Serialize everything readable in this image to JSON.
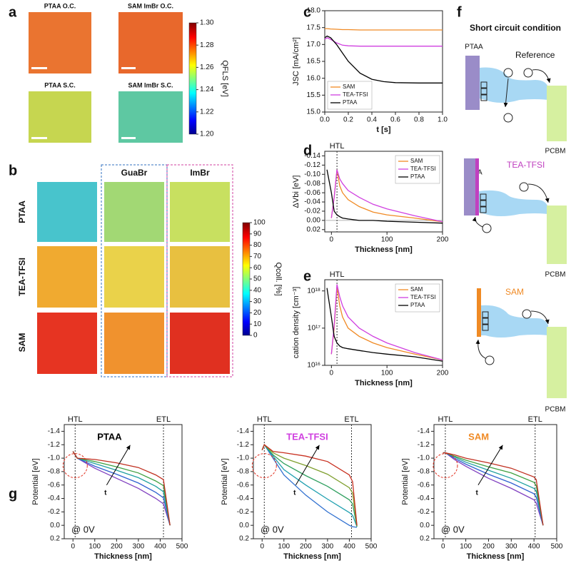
{
  "panel_labels": [
    "a",
    "b",
    "c",
    "d",
    "e",
    "f",
    "g"
  ],
  "panel_a": {
    "titles": [
      "PTAA O.C.",
      "SAM ImBr O.C.",
      "PTAA S.C.",
      "SAM ImBr S.C."
    ],
    "colorbar": {
      "label": "QFLS [eV]",
      "lim": [
        1.2,
        1.3
      ],
      "ticks": [
        {
          "value": 1.2,
          "label": "1.20"
        },
        1.22,
        1.24,
        1.26,
        1.28,
        {
          "value": 1.3,
          "label": "1.30"
        }
      ]
    }
  },
  "panel_b": {
    "columns": [
      "GuaBr",
      "ImBr"
    ],
    "rows": [
      "PTAA",
      "TEA-TFSI",
      "SAM"
    ],
    "colorbar": {
      "label": "Qcoll. [%]",
      "lim": [
        0,
        100
      ],
      "ticks": [
        0,
        10,
        20,
        30,
        40,
        50,
        60,
        70,
        80,
        90,
        100
      ]
    }
  },
  "panel_f": {
    "title": "Short circuit condition",
    "htl": "PTAA",
    "reference": "Reference",
    "etl": "PCBM",
    "tea": "TEA-TFSI",
    "sam": "SAM"
  },
  "chart_data": [
    {
      "type": "line",
      "xlabel": "t [s]",
      "ylabel": "JSC [mA/cm²]",
      "legend": "lower left",
      "xlim": [
        0,
        1
      ],
      "ylim": [
        15,
        18
      ],
      "xticks": [
        {
          "value": 0,
          "label": "0.0"
        },
        0.2,
        0.4,
        0.6,
        0.8,
        {
          "value": 1,
          "label": "1.0"
        }
      ],
      "yticks": [
        {
          "value": 15,
          "label": "15.0"
        },
        15.5,
        {
          "value": 16,
          "label": "16.0"
        },
        16.5,
        {
          "value": 17,
          "label": "17.0"
        },
        17.5,
        {
          "value": 18,
          "label": "18.0"
        }
      ],
      "x": [
        0,
        0.02,
        0.05,
        0.1,
        0.15,
        0.2,
        0.3,
        0.4,
        0.5,
        0.6,
        0.8,
        1.0
      ],
      "series": [
        {
          "name": "SAM",
          "color": "#f08a24",
          "values": [
            17.47,
            17.47,
            17.46,
            17.45,
            17.44,
            17.44,
            17.43,
            17.43,
            17.43,
            17.43,
            17.43,
            17.43
          ]
        },
        {
          "name": "TEA-TFSI",
          "color": "#d040e0",
          "values": [
            17.15,
            17.2,
            17.15,
            17.05,
            16.98,
            16.96,
            16.95,
            16.95,
            16.95,
            16.95,
            16.95,
            16.95
          ]
        },
        {
          "name": "PTAA",
          "color": "#000000",
          "values": [
            17.2,
            17.25,
            17.2,
            17.0,
            16.75,
            16.5,
            16.15,
            15.97,
            15.9,
            15.87,
            15.86,
            15.86
          ]
        }
      ]
    },
    {
      "type": "line",
      "xlabel": "Thickness [nm]",
      "ylabel": "ΔVbi [eV]",
      "legend": "upper right",
      "xlim": [
        -12,
        200
      ],
      "ylim": [
        0.025,
        -0.15
      ],
      "zero_line": true,
      "xticks": [
        0,
        100,
        200
      ],
      "yticks": [
        -0.14,
        -0.12,
        {
          "value": -0.1,
          "label": "-0.10"
        },
        -0.08,
        -0.06,
        -0.04,
        -0.02,
        {
          "value": 0,
          "label": "0.00"
        },
        0.02
      ],
      "annotations": [
        {
          "text": "HTL",
          "x": 10
        }
      ],
      "x": [
        -8,
        0,
        5,
        10,
        15,
        20,
        30,
        50,
        75,
        100,
        150,
        200
      ],
      "series": [
        {
          "name": "SAM",
          "color": "#f08a24",
          "values": [
            null,
            -0.005,
            -0.05,
            -0.11,
            -0.075,
            -0.06,
            -0.045,
            -0.03,
            -0.018,
            -0.012,
            -0.005,
            0.003
          ]
        },
        {
          "name": "TEA-TFSI",
          "color": "#d040e0",
          "values": [
            null,
            -0.005,
            -0.05,
            -0.11,
            -0.09,
            -0.08,
            -0.065,
            -0.05,
            -0.035,
            -0.025,
            -0.01,
            0.003
          ]
        },
        {
          "name": "PTAA",
          "color": "#000000",
          "values": [
            -0.11,
            -0.06,
            -0.02,
            -0.012,
            -0.008,
            -0.005,
            -0.003,
            0,
            0,
            0.002,
            0.004,
            0.006
          ]
        }
      ]
    },
    {
      "type": "line",
      "xlabel": "Thickness [nm]",
      "ylabel": "cation density [cm⁻³]",
      "legend": "upper right",
      "yscale": "log",
      "xlim": [
        -12,
        200
      ],
      "ylim": [
        1e+16,
        2e+18
      ],
      "xticks": [
        0,
        100,
        200
      ],
      "yticks": [
        {
          "value": 1e+16,
          "label": "10¹⁶"
        },
        {
          "value": 1e+17,
          "label": "10¹⁷"
        },
        {
          "value": 1e+18,
          "label": "10¹⁸"
        }
      ],
      "annotations": [
        {
          "text": "HTL",
          "x": 10
        }
      ],
      "x": [
        -8,
        0,
        5,
        10,
        15,
        20,
        30,
        50,
        75,
        100,
        150,
        200
      ],
      "series": [
        {
          "name": "SAM",
          "color": "#f08a24",
          "values": [
            null,
            2e+16,
            1e+17,
            1.3e+18,
            4e+17,
            2e+17,
            1e+17,
            6e+16,
            4e+16,
            3e+16,
            2e+16,
            1.4e+16
          ]
        },
        {
          "name": "TEA-TFSI",
          "color": "#d040e0",
          "values": [
            null,
            2e+16,
            1.2e+17,
            1.5e+18,
            7e+17,
            4e+17,
            2e+17,
            1e+17,
            6e+16,
            4e+16,
            2.2e+16,
            1.4e+16
          ]
        },
        {
          "name": "PTAA",
          "color": "#000000",
          "values": [
            1.2e+18,
            2e+17,
            6e+16,
            4e+16,
            3.3e+16,
            3e+16,
            2.8e+16,
            2.5e+16,
            2.2e+16,
            2e+16,
            1.7e+16,
            1.3e+16
          ]
        }
      ]
    },
    {
      "type": "line",
      "title": "PTAA",
      "title_color": "#000000",
      "xlabel": "Thickness [nm]",
      "ylabel": "Potential [eV]",
      "bias_label": "@ 0V",
      "arrow_label": "t",
      "xlim": [
        -40,
        500
      ],
      "ylim": [
        0.2,
        -1.5
      ],
      "xticks": [
        0,
        100,
        200,
        300,
        400,
        500
      ],
      "yticks": [
        -1.4,
        -1.2,
        {
          "value": -1,
          "label": "-1.0"
        },
        -0.8,
        -0.6,
        -0.4,
        -0.2,
        {
          "value": 0,
          "label": "0.0"
        },
        0.2
      ],
      "annotations": [
        {
          "text": "HTL",
          "x": 10
        },
        {
          "text": "ETL",
          "x": 415
        }
      ],
      "x": [
        0,
        20,
        100,
        200,
        300,
        380,
        415,
        445
      ],
      "series": [
        {
          "color": "#8040c0",
          "values": [
            -1.1,
            -1.0,
            -0.85,
            -0.7,
            -0.55,
            -0.4,
            -0.32,
            0
          ]
        },
        {
          "color": "#3060d0",
          "values": [
            -1.1,
            -1.0,
            -0.88,
            -0.76,
            -0.63,
            -0.49,
            -0.41,
            0
          ]
        },
        {
          "color": "#20a0a0",
          "values": [
            -1.1,
            -1.0,
            -0.92,
            -0.82,
            -0.71,
            -0.58,
            -0.5,
            0
          ]
        },
        {
          "color": "#40a040",
          "values": [
            -1.1,
            -1.0,
            -0.95,
            -0.87,
            -0.78,
            -0.66,
            -0.59,
            0
          ]
        },
        {
          "color": "#c03020",
          "values": [
            -1.1,
            -1.0,
            -0.98,
            -0.93,
            -0.86,
            -0.75,
            -0.68,
            0
          ]
        }
      ]
    },
    {
      "type": "line",
      "title": "TEA-TFSI",
      "title_color": "#d040e0",
      "xlabel": "Thickness [nm]",
      "ylabel": "Potential [eV]",
      "bias_label": "@ 0V",
      "arrow_label": "t",
      "xlim": [
        -40,
        500
      ],
      "ylim": [
        0.2,
        -1.5
      ],
      "xticks": [
        0,
        100,
        200,
        300,
        400,
        500
      ],
      "yticks": [
        -1.4,
        -1.2,
        {
          "value": -1,
          "label": "-1.0"
        },
        -0.8,
        -0.6,
        -0.4,
        -0.2,
        {
          "value": 0,
          "label": "0.0"
        },
        0.2
      ],
      "annotations": [
        {
          "text": "HTL",
          "x": 10
        },
        {
          "text": "ETL",
          "x": 410
        }
      ],
      "x": [
        0,
        10,
        50,
        100,
        200,
        300,
        400,
        415,
        435
      ],
      "series": [
        {
          "color": "#3070d0",
          "values": [
            -1.12,
            -1.2,
            -1.0,
            -0.75,
            -0.45,
            -0.2,
            0,
            0.02,
            0.03
          ]
        },
        {
          "color": "#20a0b0",
          "values": [
            -1.12,
            -1.2,
            -1.03,
            -0.83,
            -0.6,
            -0.39,
            -0.19,
            -0.15,
            0.02
          ]
        },
        {
          "color": "#30a060",
          "values": [
            -1.12,
            -1.2,
            -1.05,
            -0.92,
            -0.74,
            -0.58,
            -0.38,
            -0.32,
            0.02
          ]
        },
        {
          "color": "#80a030",
          "values": [
            -1.12,
            -1.2,
            -1.08,
            -1.0,
            -0.89,
            -0.76,
            -0.56,
            -0.48,
            0.01
          ]
        },
        {
          "color": "#c83020",
          "values": [
            -1.12,
            -1.2,
            -1.1,
            -1.08,
            -1.03,
            -0.95,
            -0.75,
            -0.65,
            0
          ]
        }
      ]
    },
    {
      "type": "line",
      "title": "SAM",
      "title_color": "#f08a24",
      "xlabel": "Thickness [nm]",
      "ylabel": "Potential [eV]",
      "bias_label": "@ 0V",
      "arrow_label": "t",
      "xlim": [
        -40,
        500
      ],
      "ylim": [
        0.2,
        -1.5
      ],
      "xticks": [
        0,
        100,
        200,
        300,
        400,
        500
      ],
      "yticks": [
        -1.4,
        -1.2,
        {
          "value": -1,
          "label": "-1.0"
        },
        -0.8,
        -0.6,
        -0.4,
        -0.2,
        {
          "value": 0,
          "label": "0.0"
        },
        0.2
      ],
      "annotations": [
        {
          "text": "HTL",
          "x": 10
        },
        {
          "text": "ETL",
          "x": 405
        }
      ],
      "x": [
        0,
        10,
        50,
        100,
        200,
        300,
        400,
        410,
        440
      ],
      "series": [
        {
          "color": "#8040c0",
          "values": [
            -1.08,
            -1.08,
            -0.98,
            -0.88,
            -0.7,
            -0.55,
            -0.38,
            -0.33,
            0
          ]
        },
        {
          "color": "#3060d0",
          "values": [
            -1.08,
            -1.08,
            -1.0,
            -0.91,
            -0.76,
            -0.63,
            -0.47,
            -0.42,
            0
          ]
        },
        {
          "color": "#20a0a0",
          "values": [
            -1.08,
            -1.08,
            -1.02,
            -0.94,
            -0.82,
            -0.7,
            -0.55,
            -0.51,
            0
          ]
        },
        {
          "color": "#40a040",
          "values": [
            -1.08,
            -1.08,
            -1.03,
            -0.97,
            -0.87,
            -0.78,
            -0.64,
            -0.59,
            0
          ]
        },
        {
          "color": "#c03020",
          "values": [
            -1.08,
            -1.08,
            -1.05,
            -1.0,
            -0.93,
            -0.85,
            -0.72,
            -0.68,
            0
          ]
        }
      ]
    }
  ]
}
